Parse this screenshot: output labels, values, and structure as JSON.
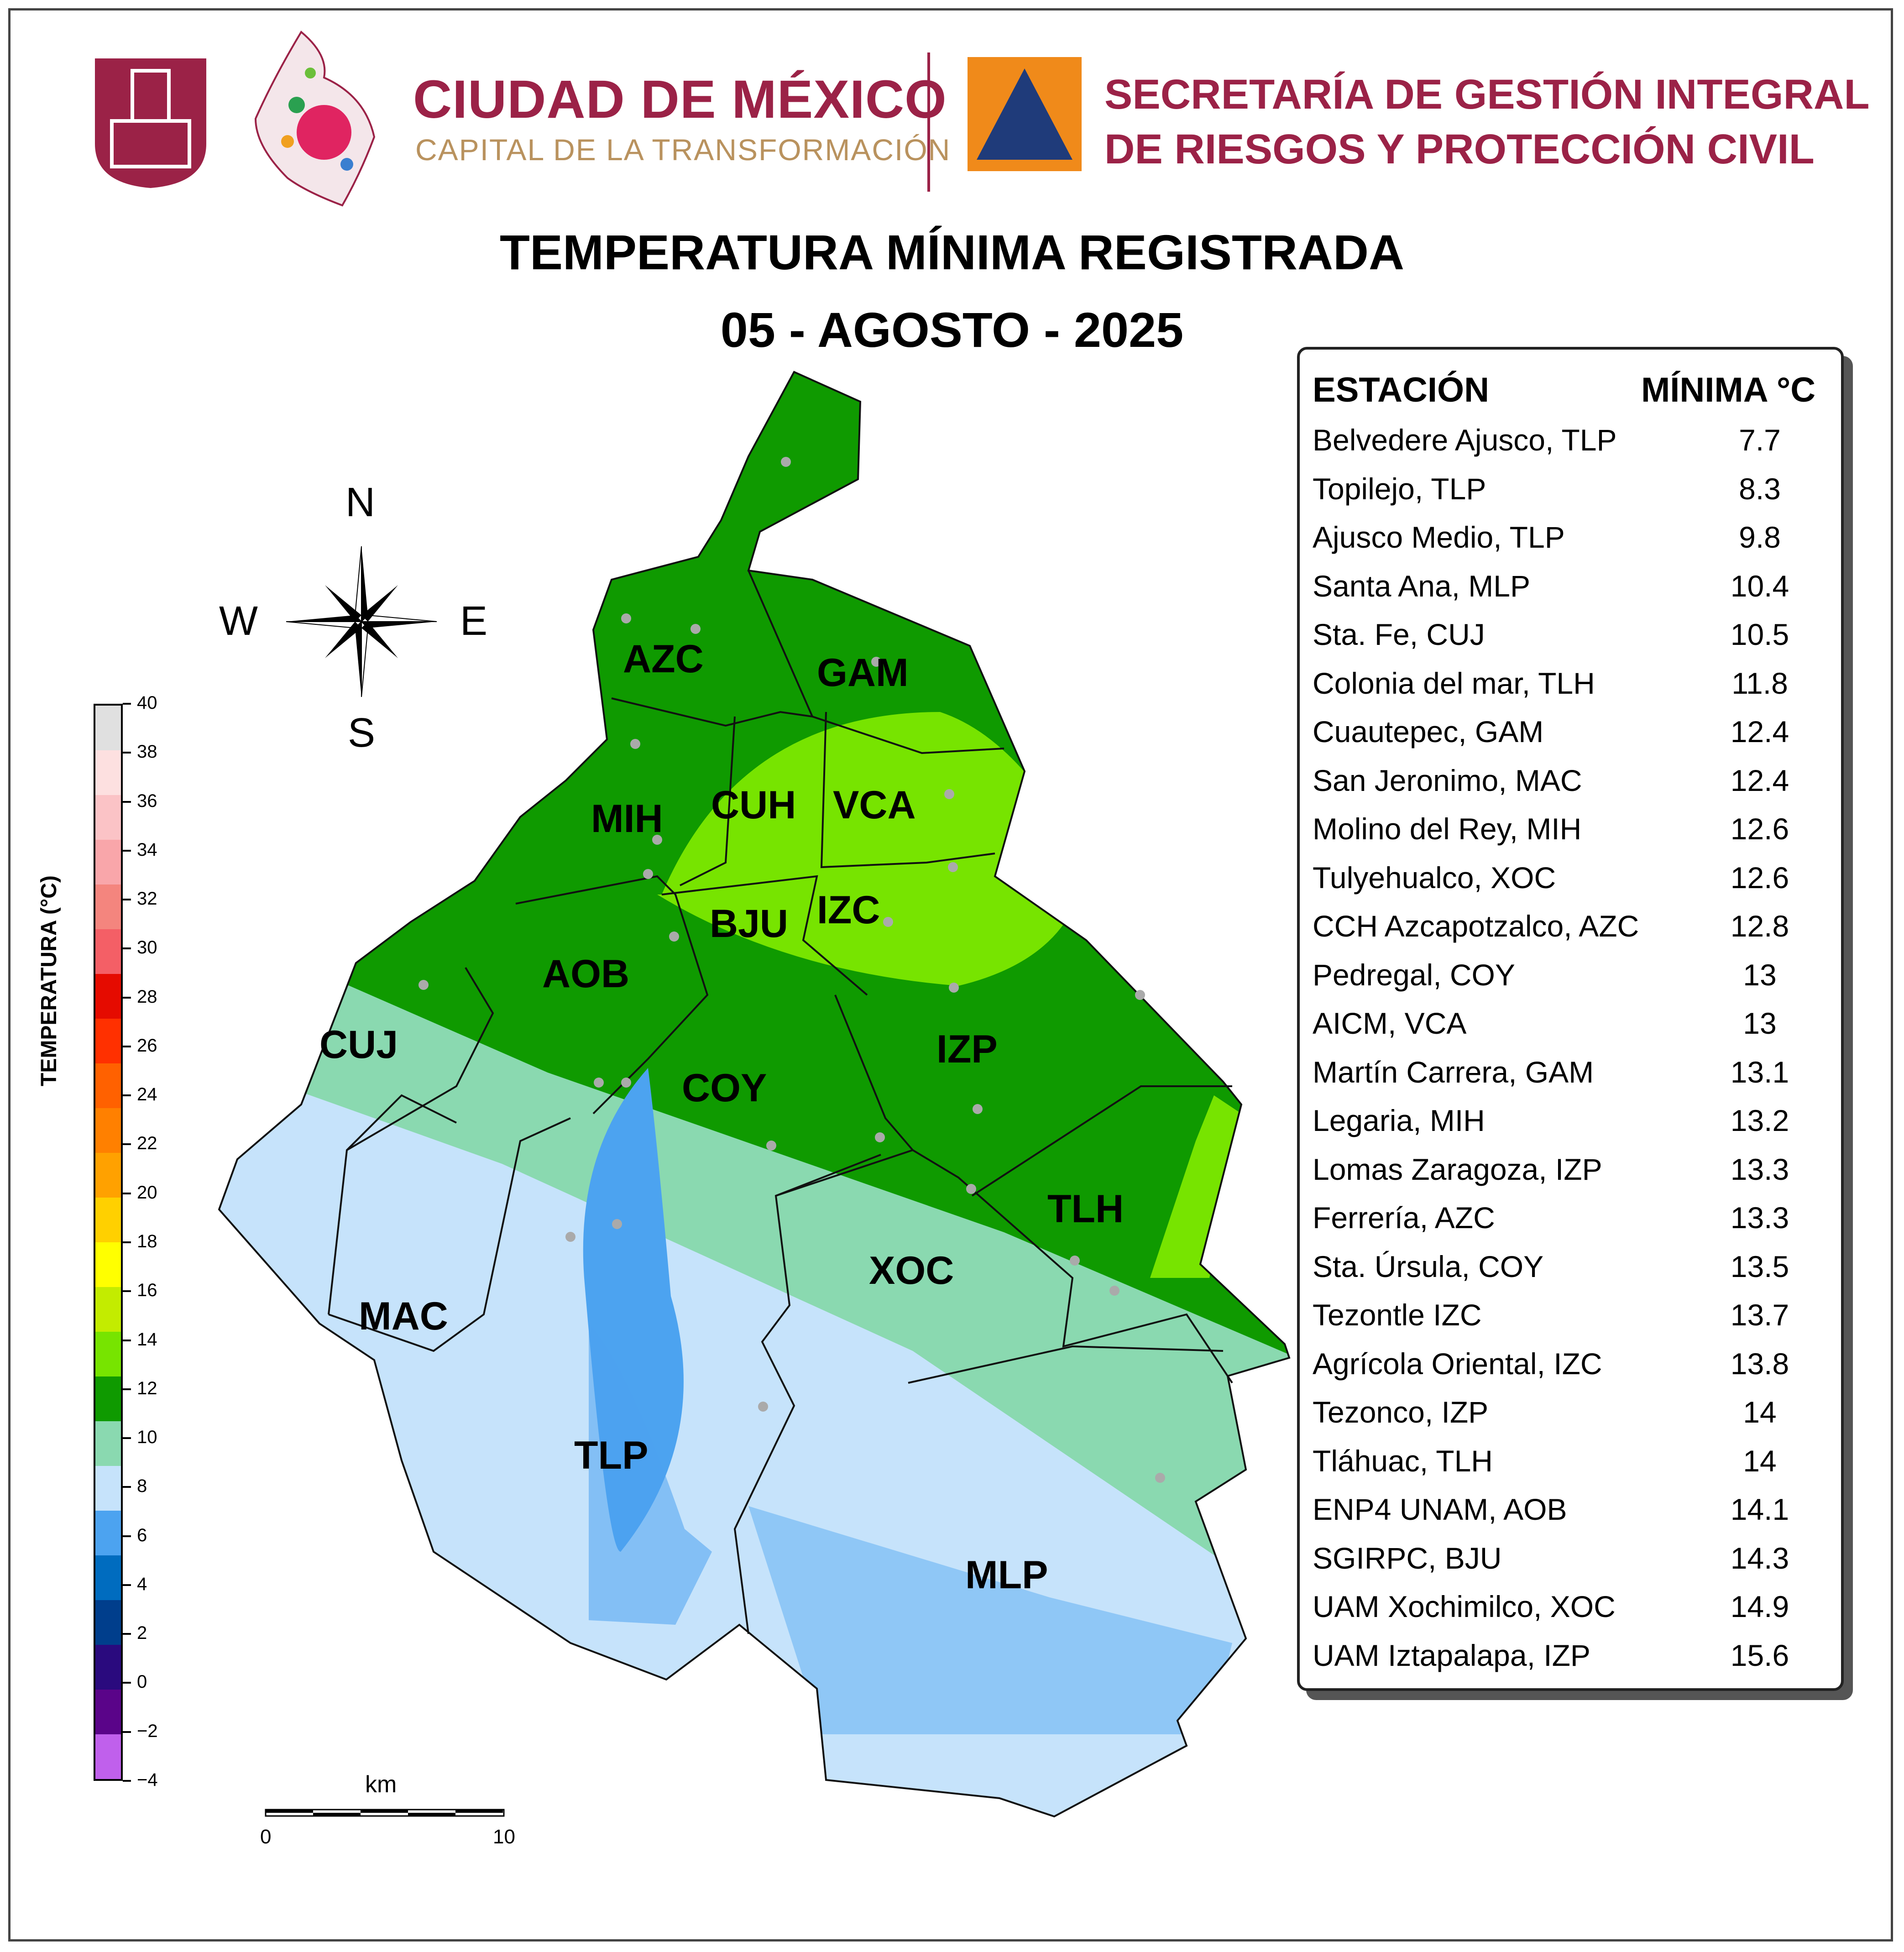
{
  "header": {
    "brand_line1": "CIUDAD DE MÉXICO",
    "brand_line2": "CAPITAL DE LA TRANSFORMACIÓN",
    "agency_line1": "SECRETARÍA DE GESTIÓN INTEGRAL",
    "agency_line2": "DE RIESGOS Y PROTECCIÓN CIVIL"
  },
  "title": {
    "line1": "TEMPERATURA MÍNIMA REGISTRADA",
    "line2": "05 - AGOSTO - 2025"
  },
  "compass": {
    "n": "N",
    "s": "S",
    "e": "E",
    "w": "W"
  },
  "colorbar": {
    "label": "TEMPERATURA (°C)",
    "ticks": [
      "40",
      "38",
      "36",
      "34",
      "32",
      "30",
      "28",
      "26",
      "24",
      "22",
      "20",
      "18",
      "16",
      "14",
      "12",
      "10",
      "8",
      "6",
      "4",
      "2",
      "0",
      "−2",
      "−4"
    ],
    "colors": [
      "#e0e0e0",
      "#fde0e0",
      "#fbc3c6",
      "#f9a6aa",
      "#f4857e",
      "#f45f66",
      "#e50b00",
      "#ff3000",
      "#ff6100",
      "#ff8000",
      "#ffa100",
      "#ffd000",
      "#ffff00",
      "#c3ec00",
      "#77e400",
      "#0f9a00",
      "#8ad9b0",
      "#c6e3fb",
      "#4ca3f0",
      "#006cbf",
      "#003e8c",
      "#2a0a7e",
      "#5a0489",
      "#c060ec"
    ]
  },
  "scalebar": {
    "unit": "km",
    "start": "0",
    "end": "10"
  },
  "municipalities": [
    "AZC",
    "GAM",
    "MIH",
    "CUH",
    "VCA",
    "BJU",
    "IZC",
    "AOB",
    "CUJ",
    "IZP",
    "COY",
    "TLH",
    "XOC",
    "MAC",
    "TLP",
    "MLP"
  ],
  "legend": {
    "col_station": "ESTACIÓN",
    "col_min": "MÍNIMA °C",
    "rows": [
      {
        "station": "Belvedere Ajusco, TLP",
        "min": "7.7"
      },
      {
        "station": "Topilejo, TLP",
        "min": "8.3"
      },
      {
        "station": "Ajusco Medio, TLP",
        "min": "9.8"
      },
      {
        "station": "Santa Ana, MLP",
        "min": "10.4"
      },
      {
        "station": "Sta. Fe, CUJ",
        "min": "10.5"
      },
      {
        "station": "Colonia del mar, TLH",
        "min": "11.8"
      },
      {
        "station": "Cuautepec, GAM",
        "min": "12.4"
      },
      {
        "station": "San Jeronimo, MAC",
        "min": "12.4"
      },
      {
        "station": "Molino del Rey, MIH",
        "min": "12.6"
      },
      {
        "station": "Tulyehualco, XOC",
        "min": "12.6"
      },
      {
        "station": "CCH Azcapotzalco, AZC",
        "min": "12.8"
      },
      {
        "station": "Pedregal, COY",
        "min": "13"
      },
      {
        "station": "AICM, VCA",
        "min": "13"
      },
      {
        "station": "Martín Carrera, GAM",
        "min": "13.1"
      },
      {
        "station": "Legaria, MIH",
        "min": "13.2"
      },
      {
        "station": "Lomas Zaragoza, IZP",
        "min": "13.3"
      },
      {
        "station": "Ferrería, AZC",
        "min": "13.3"
      },
      {
        "station": "Sta. Úrsula, COY",
        "min": "13.5"
      },
      {
        "station": "Tezontle IZC",
        "min": "13.7"
      },
      {
        "station": "Agrícola Oriental, IZC",
        "min": "13.8"
      },
      {
        "station": "Tezonco, IZP",
        "min": "14"
      },
      {
        "station": "Tláhuac, TLH",
        "min": "14"
      },
      {
        "station": "ENP4 UNAM,  AOB",
        "min": "14.1"
      },
      {
        "station": "SGIRPC, BJU",
        "min": "14.3"
      },
      {
        "station": "UAM Xochimilco, XOC",
        "min": "14.9"
      },
      {
        "station": "UAM Iztapalapa, IZP",
        "min": "15.6"
      }
    ]
  }
}
